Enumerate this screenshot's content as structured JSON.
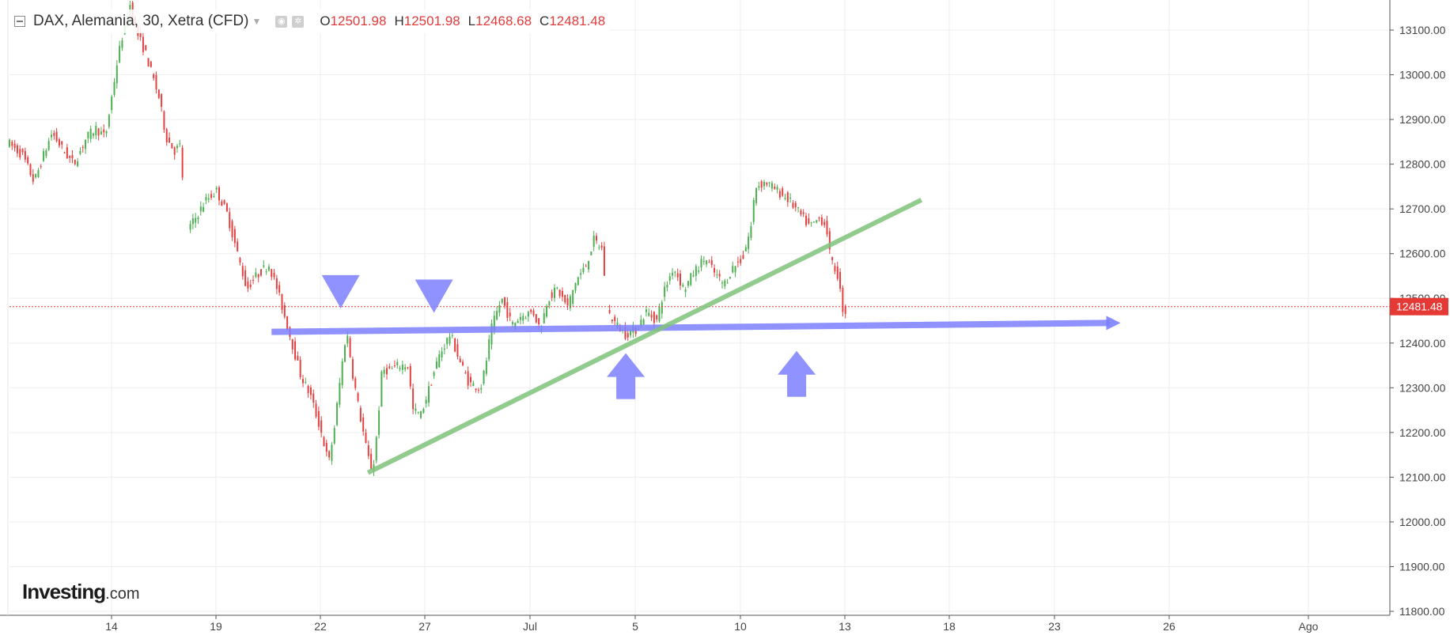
{
  "legend": {
    "title": "DAX, Alemania, 30, Xetra (CFD)",
    "open_key": "O",
    "open": "12501.98",
    "high_key": "H",
    "high": "12501.98",
    "low_key": "L",
    "low": "12468.68",
    "close_key": "C",
    "close": "12481.48"
  },
  "logo": {
    "brand": "Investing",
    "suffix": ".com"
  },
  "colors": {
    "up": "#4caf50",
    "down": "#e54040",
    "grid": "#eeeeee",
    "support": "#7b7fff",
    "trendline": "#7fc27a",
    "price_tag": "#e53935"
  },
  "chart_data": {
    "type": "candlestick",
    "x_tick_labels": [
      "14",
      "19",
      "22",
      "27",
      "Jul",
      "5",
      "10",
      "13",
      "18",
      "23",
      "26",
      "Ago"
    ],
    "y_ticks": [
      11800,
      11900,
      12000,
      12100,
      12200,
      12300,
      12400,
      12500,
      12600,
      12700,
      12800,
      12900,
      13000,
      13100
    ],
    "y_tick_labels": [
      "11800.00",
      "11900.00",
      "12000.00",
      "12100.00",
      "12200.00",
      "12300.00",
      "12400.00",
      "12500.00",
      "12600.00",
      "12700.00",
      "12800.00",
      "12900.00",
      "13000.00",
      "13100.00"
    ],
    "ylim": [
      11790,
      13150
    ],
    "last_price": 12481.48,
    "last_price_label": "12481.48",
    "grid": true,
    "price_path": [
      [
        0,
        12850
      ],
      [
        1.5,
        12820
      ],
      [
        2.6,
        12760
      ],
      [
        3.5,
        12820
      ],
      [
        4.3,
        12870
      ],
      [
        5.4,
        12830
      ],
      [
        6.4,
        12800
      ],
      [
        7.6,
        12860
      ],
      [
        8.5,
        12880
      ],
      [
        9.4,
        12860
      ],
      [
        10.6,
        13040
      ],
      [
        11.4,
        13130
      ],
      [
        11.8,
        13160
      ],
      [
        12.3,
        13100
      ],
      [
        13.2,
        13050
      ],
      [
        14.5,
        12950
      ],
      [
        15.2,
        12860
      ],
      [
        16.0,
        12830
      ],
      [
        16.5,
        12840
      ],
      [
        17.2,
        12650
      ],
      [
        18.0,
        12680
      ],
      [
        19.0,
        12720
      ],
      [
        20.0,
        12740
      ],
      [
        21.0,
        12690
      ],
      [
        22.0,
        12600
      ],
      [
        22.9,
        12520
      ],
      [
        23.4,
        12540
      ],
      [
        24.2,
        12560
      ],
      [
        25.0,
        12575
      ],
      [
        25.8,
        12520
      ],
      [
        26.5,
        12460
      ],
      [
        27.2,
        12400
      ],
      [
        28.0,
        12330
      ],
      [
        29.0,
        12280
      ],
      [
        30.0,
        12200
      ],
      [
        30.7,
        12130
      ],
      [
        31.3,
        12220
      ],
      [
        31.8,
        12320
      ],
      [
        32.4,
        12430
      ],
      [
        33.0,
        12330
      ],
      [
        33.6,
        12250
      ],
      [
        34.4,
        12150
      ],
      [
        34.9,
        12110
      ],
      [
        35.3,
        12200
      ],
      [
        35.8,
        12340
      ],
      [
        36.6,
        12340
      ],
      [
        37.4,
        12350
      ],
      [
        38.3,
        12350
      ],
      [
        38.7,
        12250
      ],
      [
        39.5,
        12240
      ],
      [
        40.3,
        12300
      ],
      [
        41.2,
        12370
      ],
      [
        42.3,
        12420
      ],
      [
        43.2,
        12360
      ],
      [
        44.1,
        12310
      ],
      [
        45.2,
        12300
      ],
      [
        45.6,
        12340
      ],
      [
        46.2,
        12430
      ],
      [
        47.2,
        12500
      ],
      [
        48.2,
        12440
      ],
      [
        49.0,
        12460
      ],
      [
        50.2,
        12470
      ],
      [
        50.9,
        12430
      ],
      [
        51.6,
        12500
      ],
      [
        52.5,
        12520
      ],
      [
        53.5,
        12480
      ],
      [
        54.3,
        12540
      ],
      [
        55.2,
        12570
      ],
      [
        56.0,
        12630
      ],
      [
        56.8,
        12610
      ],
      [
        57.3,
        12470
      ],
      [
        58.2,
        12440
      ],
      [
        59.0,
        12420
      ],
      [
        60.0,
        12430
      ],
      [
        61.0,
        12470
      ],
      [
        62.0,
        12450
      ],
      [
        62.6,
        12510
      ],
      [
        63.6,
        12570
      ],
      [
        64.6,
        12520
      ],
      [
        65.6,
        12560
      ],
      [
        66.6,
        12590
      ],
      [
        67.4,
        12560
      ],
      [
        68.4,
        12530
      ],
      [
        69.3,
        12570
      ],
      [
        70.2,
        12590
      ],
      [
        71.0,
        12660
      ],
      [
        71.4,
        12750
      ],
      [
        72.4,
        12760
      ],
      [
        73.5,
        12740
      ],
      [
        74.6,
        12720
      ],
      [
        75.6,
        12690
      ],
      [
        76.6,
        12660
      ],
      [
        77.6,
        12680
      ],
      [
        78.2,
        12660
      ],
      [
        78.6,
        12580
      ],
      [
        79.2,
        12560
      ],
      [
        79.8,
        12470
      ]
    ],
    "annotations": {
      "support_line": {
        "x1": 25,
        "y1": 12425,
        "x2": 106,
        "y2": 12445
      },
      "trend_line": {
        "x1": 34.2,
        "y1": 12110,
        "x2": 87,
        "y2": 12720
      },
      "down_markers": [
        {
          "x": 31.6,
          "y": 12460
        },
        {
          "x": 40.5,
          "y": 12450
        }
      ],
      "up_markers": [
        {
          "x": 58.8,
          "y": 12395
        },
        {
          "x": 75.1,
          "y": 12400
        }
      ]
    }
  }
}
